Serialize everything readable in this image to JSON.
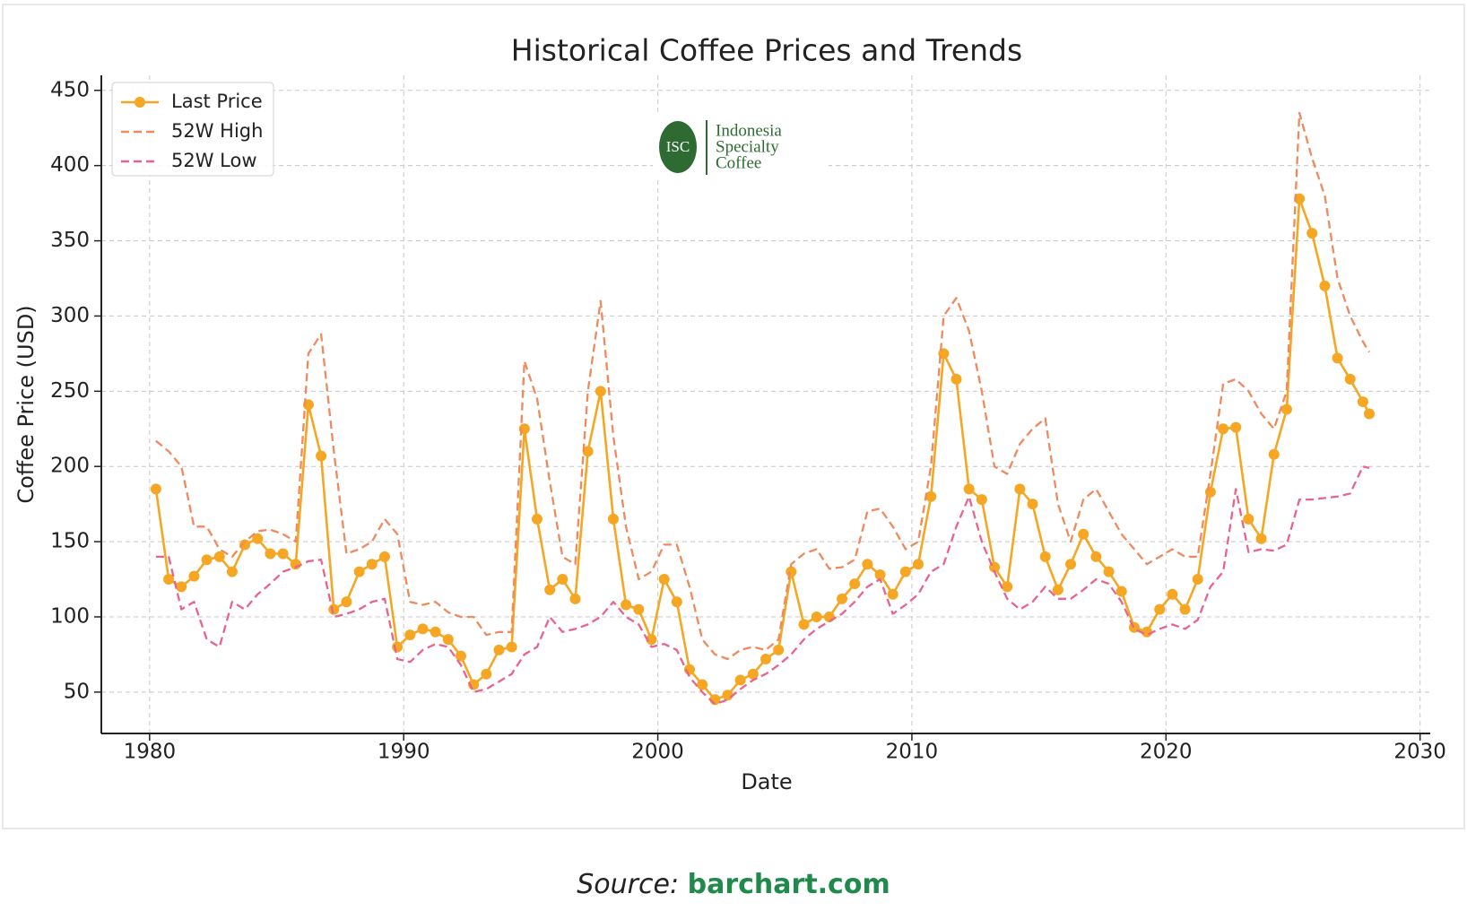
{
  "chart_data": {
    "type": "line",
    "title": "Historical Coffee Prices and Trends",
    "x_label": "Date",
    "y_label": "Coffee Price (USD)",
    "x": [
      1980.25,
      1980.75,
      1981.25,
      1981.75,
      1982.25,
      1982.75,
      1983.25,
      1983.75,
      1984.25,
      1984.75,
      1985.25,
      1985.75,
      1986.25,
      1986.75,
      1987.25,
      1987.75,
      1988.25,
      1988.75,
      1989.25,
      1989.75,
      1990.25,
      1990.75,
      1991.25,
      1991.75,
      1992.25,
      1992.75,
      1993.25,
      1993.75,
      1994.25,
      1994.75,
      1995.25,
      1995.75,
      1996.25,
      1996.75,
      1997.25,
      1997.75,
      1998.25,
      1998.75,
      1999.25,
      1999.75,
      2000.25,
      2000.75,
      2001.25,
      2001.75,
      2002.25,
      2002.75,
      2003.25,
      2003.75,
      2004.25,
      2004.75,
      2005.25,
      2005.75,
      2006.25,
      2006.75,
      2007.25,
      2007.75,
      2008.25,
      2008.75,
      2009.25,
      2009.75,
      2010.25,
      2010.75,
      2011.25,
      2011.75,
      2012.25,
      2012.75,
      2013.25,
      2013.75,
      2014.25,
      2014.75,
      2015.25,
      2015.75,
      2016.25,
      2016.75,
      2017.25,
      2017.75,
      2018.25,
      2018.75,
      2019.25,
      2019.75,
      2020.25,
      2020.75,
      2021.25,
      2021.75,
      2022.25,
      2022.75,
      2023.25,
      2023.75,
      2024.25,
      2024.75,
      2025.25,
      2025.75,
      2026.25,
      2026.75,
      2027.25,
      2027.75,
      2028.0
    ],
    "series": [
      {
        "name": "Last Price",
        "color": "#f5a623",
        "linestyle": "solid",
        "marker": "o",
        "values": [
          185,
          125,
          120,
          127,
          138,
          140,
          130,
          148,
          152,
          142,
          142,
          135,
          241,
          207,
          105,
          110,
          130,
          135,
          140,
          80,
          88,
          92,
          90,
          85,
          74,
          55,
          62,
          78,
          80,
          225,
          165,
          118,
          125,
          112,
          210,
          250,
          165,
          108,
          105,
          85,
          125,
          110,
          65,
          55,
          45,
          48,
          58,
          62,
          72,
          78,
          130,
          95,
          100,
          100,
          112,
          122,
          135,
          128,
          115,
          130,
          135,
          180,
          275,
          258,
          185,
          178,
          133,
          120,
          185,
          175,
          140,
          118,
          135,
          155,
          140,
          130,
          117,
          93,
          90,
          105,
          115,
          105,
          125,
          183,
          225,
          226,
          165,
          152,
          208,
          238,
          378,
          355,
          320,
          272,
          258,
          243,
          235
        ]
      },
      {
        "name": "52W High",
        "color": "#ee8a5e",
        "linestyle": "dashed",
        "values": [
          217,
          210,
          200,
          160,
          160,
          145,
          140,
          150,
          157,
          158,
          155,
          150,
          275,
          288,
          210,
          142,
          145,
          150,
          165,
          155,
          110,
          108,
          110,
          103,
          100,
          100,
          88,
          90,
          90,
          270,
          245,
          190,
          140,
          135,
          250,
          310,
          220,
          160,
          125,
          130,
          148,
          148,
          120,
          85,
          75,
          72,
          78,
          80,
          78,
          85,
          135,
          142,
          145,
          132,
          133,
          138,
          170,
          172,
          160,
          145,
          150,
          200,
          300,
          312,
          290,
          250,
          200,
          195,
          215,
          225,
          232,
          175,
          150,
          178,
          185,
          170,
          155,
          145,
          135,
          140,
          145,
          140,
          140,
          195,
          255,
          258,
          250,
          235,
          225,
          250,
          435,
          405,
          380,
          325,
          300,
          283,
          276
        ]
      },
      {
        "name": "52W Low",
        "color": "#e8648c",
        "linestyle": "dashed",
        "values": [
          140,
          140,
          105,
          110,
          85,
          80,
          110,
          105,
          115,
          122,
          130,
          133,
          137,
          138,
          100,
          102,
          105,
          110,
          112,
          72,
          70,
          78,
          82,
          80,
          68,
          50,
          52,
          57,
          62,
          75,
          80,
          100,
          90,
          92,
          95,
          100,
          110,
          100,
          95,
          80,
          82,
          78,
          60,
          50,
          42,
          45,
          52,
          58,
          62,
          68,
          75,
          85,
          92,
          97,
          102,
          110,
          120,
          125,
          102,
          108,
          115,
          130,
          135,
          160,
          180,
          150,
          130,
          112,
          105,
          110,
          120,
          112,
          112,
          118,
          125,
          122,
          110,
          92,
          88,
          92,
          95,
          92,
          98,
          120,
          130,
          185,
          143,
          145,
          144,
          148,
          178,
          178,
          179,
          180,
          182,
          200,
          199
        ]
      }
    ],
    "xlim": [
      1978.1,
      2030.4
    ],
    "ylim": [
      22.5,
      460
    ],
    "xticks": [
      1980,
      1990,
      2000,
      2010,
      2020,
      2030
    ],
    "yticks": [
      50,
      100,
      150,
      200,
      250,
      300,
      350,
      400,
      450
    ],
    "grid": true,
    "legend": "upper left"
  },
  "logo": {
    "mark": "ISC",
    "lines": [
      "Indonesia",
      "Specialty",
      "Coffee"
    ]
  },
  "source": {
    "label": "Source:",
    "link": "barchart.com"
  }
}
